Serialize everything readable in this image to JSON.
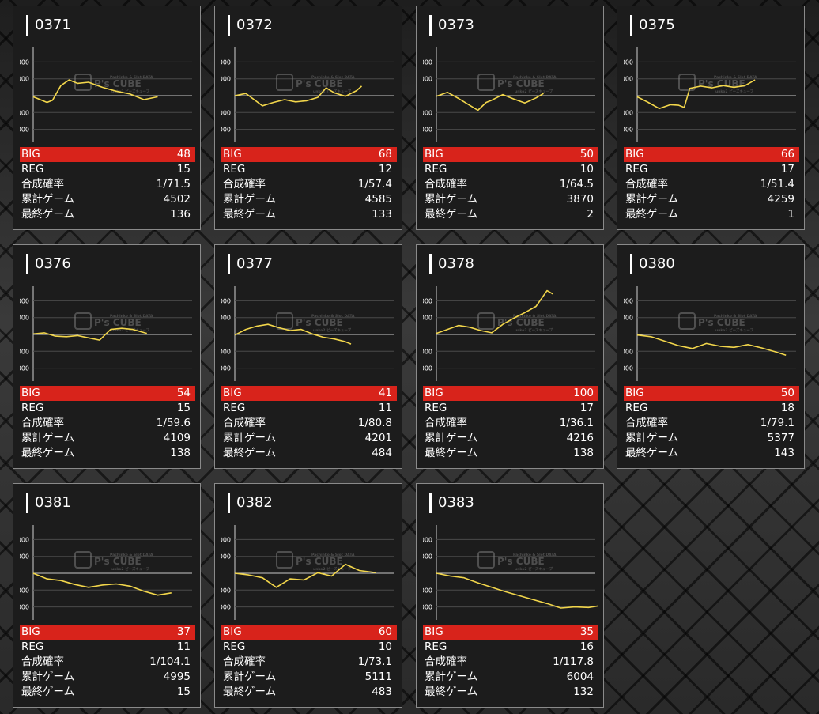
{
  "labels": {
    "big": "BIG",
    "reg": "REG",
    "combined": "合成確率",
    "total_games": "累計ゲーム",
    "last_game": "最終ゲーム"
  },
  "watermark": {
    "brand": "P's CUBE",
    "tagline": "Pachinko & Slot DATA",
    "sub": "unko2 ピーズキューブ"
  },
  "colors": {
    "line": "#f2d64b",
    "big_bar": "#d8231b",
    "card_bg": "#1c1c1c"
  },
  "cards": [
    {
      "machine": "0371",
      "big": "48",
      "reg": "15",
      "combined": "1/71.5",
      "total_games": "4502",
      "last_game": "136"
    },
    {
      "machine": "0372",
      "big": "68",
      "reg": "12",
      "combined": "1/57.4",
      "total_games": "4585",
      "last_game": "133"
    },
    {
      "machine": "0373",
      "big": "50",
      "reg": "10",
      "combined": "1/64.5",
      "total_games": "3870",
      "last_game": "2"
    },
    {
      "machine": "0375",
      "big": "66",
      "reg": "17",
      "combined": "1/51.4",
      "total_games": "4259",
      "last_game": "1"
    },
    {
      "machine": "0376",
      "big": "54",
      "reg": "15",
      "combined": "1/59.6",
      "total_games": "4109",
      "last_game": "138"
    },
    {
      "machine": "0377",
      "big": "41",
      "reg": "11",
      "combined": "1/80.8",
      "total_games": "4201",
      "last_game": "484"
    },
    {
      "machine": "0378",
      "big": "100",
      "reg": "17",
      "combined": "1/36.1",
      "total_games": "4216",
      "last_game": "138"
    },
    {
      "machine": "0380",
      "big": "50",
      "reg": "18",
      "combined": "1/79.1",
      "total_games": "5377",
      "last_game": "143"
    },
    {
      "machine": "0381",
      "big": "37",
      "reg": "11",
      "combined": "1/104.1",
      "total_games": "4995",
      "last_game": "15"
    },
    {
      "machine": "0382",
      "big": "60",
      "reg": "10",
      "combined": "1/73.1",
      "total_games": "5111",
      "last_game": "483"
    },
    {
      "machine": "0383",
      "big": "35",
      "reg": "16",
      "combined": "1/117.8",
      "total_games": "6004",
      "last_game": "132"
    }
  ],
  "chart_data": [
    {
      "type": "line",
      "machine": "0371",
      "yticks": [
        6000,
        3000,
        -3000,
        -6000
      ],
      "ylim": [
        -8000,
        8000
      ],
      "x": [
        0,
        500,
        700,
        1000,
        1300,
        1600,
        2000,
        2500,
        3000,
        3500,
        4000,
        4500
      ],
      "y": [
        -200,
        -1200,
        -800,
        1800,
        2800,
        2200,
        2400,
        1500,
        800,
        300,
        -700,
        -200
      ]
    },
    {
      "type": "line",
      "machine": "0372",
      "yticks": [
        6000,
        3000,
        -3000,
        -6000
      ],
      "ylim": [
        -8000,
        8000
      ],
      "x": [
        0,
        400,
        1000,
        1400,
        1800,
        2200,
        2600,
        3000,
        3300,
        3600,
        4000,
        4400,
        4585
      ],
      "y": [
        0,
        400,
        -1800,
        -1200,
        -700,
        -1100,
        -900,
        -300,
        1400,
        500,
        -100,
        900,
        1700
      ]
    },
    {
      "type": "line",
      "machine": "0373",
      "yticks": [
        6000,
        3000,
        -3000,
        -6000
      ],
      "ylim": [
        -8000,
        8000
      ],
      "x": [
        0,
        400,
        800,
        1200,
        1500,
        1800,
        2000,
        2400,
        2800,
        3200,
        3600,
        3870
      ],
      "y": [
        -100,
        600,
        -500,
        -1700,
        -2600,
        -1200,
        -800,
        200,
        -600,
        -1300,
        -400,
        400
      ]
    },
    {
      "type": "line",
      "machine": "0375",
      "yticks": [
        6000,
        3000,
        -3000,
        -6000
      ],
      "ylim": [
        -8000,
        8000
      ],
      "x": [
        0,
        400,
        800,
        1200,
        1500,
        1700,
        1900,
        2300,
        2700,
        3100,
        3500,
        3900,
        4259
      ],
      "y": [
        -200,
        -1200,
        -2300,
        -1600,
        -1700,
        -2100,
        1300,
        1700,
        1400,
        1800,
        1500,
        1800,
        2800
      ]
    },
    {
      "type": "line",
      "machine": "0376",
      "yticks": [
        6000,
        3000,
        -3000,
        -6000
      ],
      "ylim": [
        -8000,
        8000
      ],
      "x": [
        0,
        400,
        800,
        1200,
        1600,
        2000,
        2400,
        2800,
        3200,
        3600,
        4109
      ],
      "y": [
        100,
        300,
        -300,
        -400,
        -200,
        -600,
        -1000,
        900,
        1100,
        900,
        200
      ]
    },
    {
      "type": "line",
      "machine": "0377",
      "yticks": [
        6000,
        3000,
        -3000,
        -6000
      ],
      "ylim": [
        -8000,
        8000
      ],
      "x": [
        0,
        400,
        800,
        1200,
        1600,
        2000,
        2400,
        2800,
        3200,
        3600,
        4000,
        4201
      ],
      "y": [
        -100,
        900,
        1500,
        1800,
        1200,
        700,
        900,
        100,
        -500,
        -800,
        -1300,
        -1700
      ]
    },
    {
      "type": "line",
      "machine": "0378",
      "yticks": [
        6000,
        3000,
        -3000,
        -6000
      ],
      "ylim": [
        -8000,
        8000
      ],
      "x": [
        0,
        400,
        800,
        1200,
        1600,
        2000,
        2400,
        2800,
        3200,
        3600,
        4000,
        4216
      ],
      "y": [
        200,
        900,
        1600,
        1300,
        700,
        300,
        1800,
        2900,
        3900,
        5000,
        7800,
        7200
      ]
    },
    {
      "type": "line",
      "machine": "0380",
      "yticks": [
        6000,
        3000,
        -3000,
        -6000
      ],
      "ylim": [
        -8000,
        8000
      ],
      "x": [
        0,
        500,
        1000,
        1500,
        2000,
        2500,
        3000,
        3500,
        4000,
        4500,
        5000,
        5377
      ],
      "y": [
        -100,
        -400,
        -1200,
        -2000,
        -2500,
        -1600,
        -2100,
        -2300,
        -1800,
        -2400,
        -3100,
        -3700
      ]
    },
    {
      "type": "line",
      "machine": "0381",
      "yticks": [
        6000,
        3000,
        -3000,
        -6000
      ],
      "ylim": [
        -8000,
        8000
      ],
      "x": [
        0,
        500,
        1000,
        1500,
        2000,
        2500,
        3000,
        3500,
        4000,
        4500,
        4995
      ],
      "y": [
        0,
        -1000,
        -1300,
        -2000,
        -2500,
        -2100,
        -1900,
        -2300,
        -3200,
        -3900,
        -3500
      ]
    },
    {
      "type": "line",
      "machine": "0382",
      "yticks": [
        6000,
        3000,
        -3000,
        -6000
      ],
      "ylim": [
        -8000,
        8000
      ],
      "x": [
        0,
        500,
        1000,
        1500,
        2000,
        2500,
        3000,
        3500,
        4000,
        4500,
        5111
      ],
      "y": [
        0,
        -300,
        -800,
        -2500,
        -1000,
        -1200,
        100,
        -500,
        1600,
        500,
        100
      ]
    },
    {
      "type": "line",
      "machine": "0383",
      "yticks": [
        6000,
        3000,
        -3000,
        -6000
      ],
      "ylim": [
        -8000,
        8000
      ],
      "x": [
        0,
        500,
        1000,
        1500,
        2000,
        2500,
        3000,
        3500,
        4000,
        4500,
        5000,
        5500,
        6004
      ],
      "y": [
        0,
        -500,
        -800,
        -1700,
        -2500,
        -3300,
        -4000,
        -4700,
        -5400,
        -6200,
        -6000,
        -6100,
        -5700
      ]
    }
  ]
}
